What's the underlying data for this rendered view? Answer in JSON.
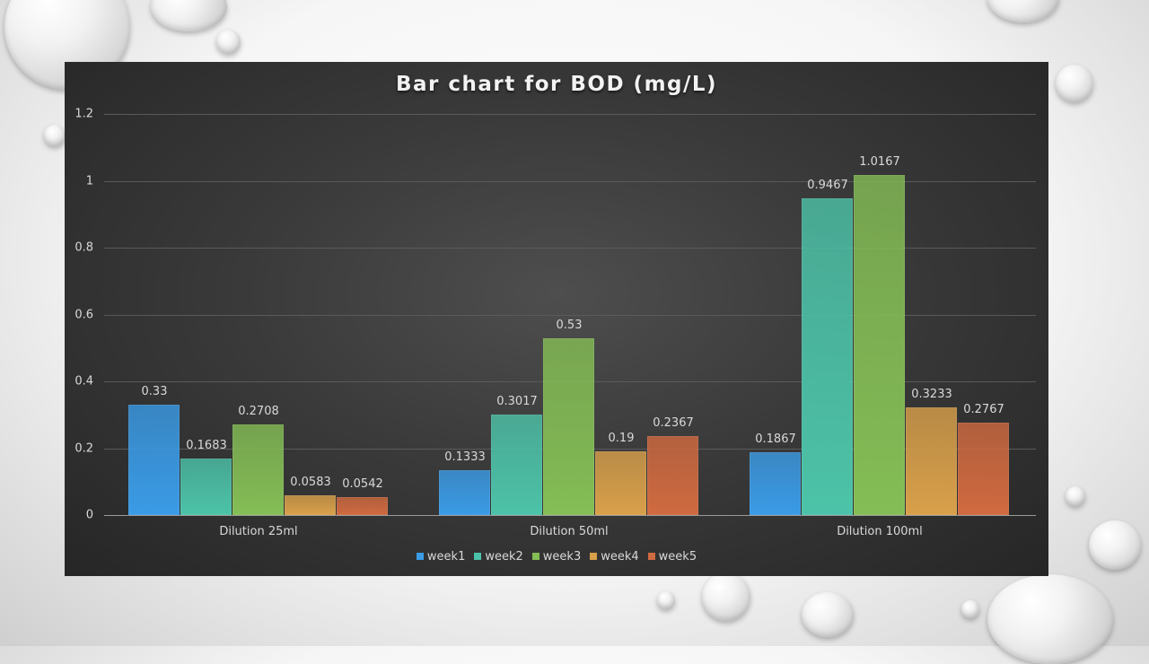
{
  "chart_data": {
    "type": "bar",
    "title": "Bar chart for BOD (mg/L)",
    "xlabel": "",
    "ylabel": "",
    "categories": [
      "Dilution 25ml",
      "Dilution 50ml",
      "Dilution 100ml"
    ],
    "series": [
      {
        "name": "week1",
        "color": "#3a9be6",
        "values": [
          0.33,
          0.1333,
          0.1867
        ]
      },
      {
        "name": "week2",
        "color": "#4cc3a8",
        "values": [
          0.1683,
          0.3017,
          0.9467
        ]
      },
      {
        "name": "week3",
        "color": "#84bd55",
        "values": [
          0.2708,
          0.53,
          1.0167
        ]
      },
      {
        "name": "week4",
        "color": "#d9a04a",
        "values": [
          0.0583,
          0.19,
          0.3233
        ]
      },
      {
        "name": "week5",
        "color": "#d06a40",
        "values": [
          0.0542,
          0.2367,
          0.2767
        ]
      }
    ],
    "value_labels": [
      [
        "0.33",
        "0.1333",
        "0.1867"
      ],
      [
        "0.1683",
        "0.3017",
        "0.9467"
      ],
      [
        "0.2708",
        "0.53",
        "1.0167"
      ],
      [
        "0.0583",
        "0.19",
        "0.3233"
      ],
      [
        "0.0542",
        "0.2367",
        "0.2767"
      ]
    ],
    "yticks": [
      "0",
      "0.2",
      "0.4",
      "0.6",
      "0.8",
      "1",
      "1.2"
    ],
    "ylim": [
      0,
      1.2
    ],
    "grid": true,
    "legend_position": "bottom"
  }
}
